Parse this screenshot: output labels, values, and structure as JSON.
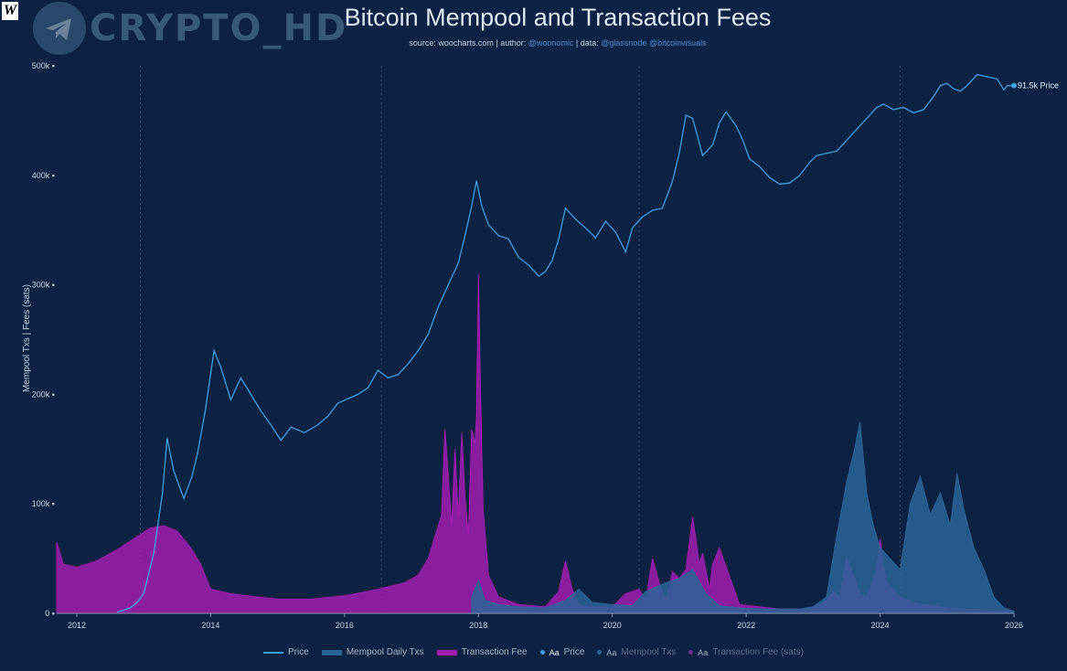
{
  "watermark": {
    "logo_letter": "W",
    "brand": "CRYPTO_HD"
  },
  "header": {
    "title": "Bitcoin Mempool and Transaction Fees",
    "source_prefix": "source: ",
    "source": "woocharts.com",
    "author_prefix": " | author: ",
    "author": "@woonomic",
    "data_prefix": " | data: ",
    "data_sources": "@glassnode @bitcoinvisuals"
  },
  "legend": {
    "price": "Price",
    "mempool": "Mempool Daily Txs",
    "fee": "Transaction Fee",
    "toggle_price": "Price",
    "toggle_mempool": "Mempool Txs",
    "toggle_fee": "Transaction Fee (sats)",
    "aa": "Aa"
  },
  "colors": {
    "background": "#0c2244",
    "price": "#3fa0e0",
    "mempool": "#2a6496",
    "fee": "#a21caf",
    "grid": "#39506e"
  },
  "chart_data": {
    "type": "area",
    "title": "Bitcoin Mempool and Transaction Fees",
    "ylabel": "Mempool Txs  |  Fees (sats)",
    "ylim": [
      0,
      500000
    ],
    "xlim": [
      2011.7,
      2026.0
    ],
    "yticks": [
      "0",
      "100k",
      "200k",
      "300k",
      "400k",
      "500k"
    ],
    "xticks": [
      "2012",
      "2014",
      "2016",
      "2018",
      "2020",
      "2022",
      "2024",
      "2026"
    ],
    "legend_position": "bottom",
    "end_label": "91.5k Price",
    "series": [
      {
        "name": "Price",
        "type": "line",
        "x": [
          2012.6,
          2012.8,
          2012.9,
          2013.0,
          2013.15,
          2013.28,
          2013.35,
          2013.45,
          2013.6,
          2013.72,
          2013.8,
          2013.92,
          2014.05,
          2014.15,
          2014.3,
          2014.45,
          2014.6,
          2014.75,
          2014.9,
          2015.05,
          2015.2,
          2015.4,
          2015.6,
          2015.75,
          2015.9,
          2016.05,
          2016.2,
          2016.35,
          2016.5,
          2016.65,
          2016.8,
          2016.95,
          2017.1,
          2017.25,
          2017.4,
          2017.55,
          2017.7,
          2017.8,
          2017.9,
          2017.97,
          2018.05,
          2018.15,
          2018.3,
          2018.45,
          2018.6,
          2018.75,
          2018.9,
          2019.0,
          2019.1,
          2019.2,
          2019.3,
          2019.45,
          2019.6,
          2019.75,
          2019.9,
          2020.05,
          2020.2,
          2020.3,
          2020.45,
          2020.6,
          2020.75,
          2020.9,
          2021.0,
          2021.1,
          2021.2,
          2021.35,
          2021.5,
          2021.6,
          2021.7,
          2021.85,
          2021.95,
          2022.05,
          2022.2,
          2022.35,
          2022.5,
          2022.65,
          2022.8,
          2022.95,
          2023.05,
          2023.2,
          2023.35,
          2023.5,
          2023.65,
          2023.8,
          2023.95,
          2024.05,
          2024.2,
          2024.35,
          2024.5,
          2024.65,
          2024.8,
          2024.9,
          2025.0,
          2025.1,
          2025.2,
          2025.3,
          2025.45,
          2025.6,
          2025.75,
          2025.85,
          2025.9,
          2026.0
        ],
        "y": [
          1000,
          5000,
          10000,
          18000,
          55000,
          110000,
          160000,
          130000,
          105000,
          125000,
          145000,
          185000,
          240000,
          225000,
          195000,
          215000,
          200000,
          185000,
          172000,
          158000,
          170000,
          165000,
          172000,
          180000,
          192000,
          196000,
          200000,
          206000,
          222000,
          215000,
          218000,
          228000,
          240000,
          255000,
          280000,
          300000,
          320000,
          345000,
          372000,
          395000,
          372000,
          355000,
          345000,
          342000,
          325000,
          318000,
          308000,
          312000,
          322000,
          342000,
          370000,
          360000,
          352000,
          343000,
          358000,
          348000,
          330000,
          352000,
          362000,
          368000,
          370000,
          395000,
          420000,
          455000,
          452000,
          418000,
          428000,
          448000,
          458000,
          445000,
          432000,
          415000,
          408000,
          398000,
          392000,
          393000,
          400000,
          412000,
          418000,
          420000,
          422000,
          432000,
          442000,
          452000,
          462000,
          465000,
          460000,
          462000,
          457000,
          460000,
          472000,
          482000,
          484000,
          479000,
          477000,
          482000,
          492000,
          490000,
          488000,
          478000,
          482000,
          482000
        ]
      },
      {
        "name": "Mempool Daily Txs",
        "type": "area",
        "x": [
          2017.9,
          2018.0,
          2018.1,
          2018.3,
          2018.6,
          2019.0,
          2019.3,
          2019.5,
          2019.7,
          2020.0,
          2020.3,
          2020.5,
          2020.8,
          2021.0,
          2021.2,
          2021.4,
          2021.6,
          2021.9,
          2022.3,
          2022.8,
          2023.0,
          2023.2,
          2023.35,
          2023.5,
          2023.62,
          2023.7,
          2023.8,
          2023.9,
          2024.0,
          2024.15,
          2024.3,
          2024.45,
          2024.6,
          2024.75,
          2024.9,
          2025.05,
          2025.15,
          2025.25,
          2025.4,
          2025.55,
          2025.7,
          2025.85,
          2026.0
        ],
        "y": [
          15000,
          30000,
          12000,
          8000,
          6000,
          5000,
          12000,
          22000,
          10000,
          8000,
          7000,
          20000,
          28000,
          32000,
          40000,
          18000,
          7000,
          5000,
          4000,
          4000,
          6000,
          15000,
          70000,
          120000,
          150000,
          175000,
          110000,
          80000,
          60000,
          50000,
          40000,
          100000,
          125000,
          90000,
          110000,
          80000,
          128000,
          95000,
          60000,
          40000,
          15000,
          5000,
          2000
        ]
      },
      {
        "name": "Transaction Fee",
        "type": "area",
        "x": [
          2011.7,
          2011.8,
          2012.0,
          2012.3,
          2012.6,
          2012.9,
          2013.1,
          2013.3,
          2013.5,
          2013.7,
          2013.85,
          2014.0,
          2014.3,
          2014.7,
          2015.0,
          2015.5,
          2016.0,
          2016.5,
          2016.9,
          2017.1,
          2017.25,
          2017.35,
          2017.45,
          2017.5,
          2017.55,
          2017.6,
          2017.65,
          2017.7,
          2017.75,
          2017.8,
          2017.85,
          2017.9,
          2017.95,
          2017.97,
          2018.0,
          2018.03,
          2018.07,
          2018.15,
          2018.3,
          2018.6,
          2019.0,
          2019.2,
          2019.3,
          2019.4,
          2019.5,
          2019.7,
          2020.0,
          2020.2,
          2020.4,
          2020.5,
          2020.6,
          2020.7,
          2020.8,
          2020.9,
          2021.0,
          2021.1,
          2021.2,
          2021.3,
          2021.35,
          2021.45,
          2021.5,
          2021.6,
          2021.9,
          2022.5,
          2022.9,
          2023.1,
          2023.2,
          2023.3,
          2023.4,
          2023.5,
          2023.7,
          2023.8,
          2023.9,
          2023.95,
          2024.0,
          2024.05,
          2024.1,
          2024.3,
          2024.5,
          2024.7,
          2025.0,
          2025.5,
          2026.0
        ],
        "y": [
          65000,
          45000,
          42000,
          48000,
          58000,
          70000,
          78000,
          80000,
          75000,
          60000,
          45000,
          22000,
          18000,
          15000,
          13000,
          13000,
          16000,
          22000,
          28000,
          35000,
          50000,
          70000,
          90000,
          168000,
          125000,
          80000,
          150000,
          88000,
          165000,
          105000,
          72000,
          168000,
          155000,
          180000,
          310000,
          205000,
          95000,
          35000,
          15000,
          8000,
          6000,
          20000,
          48000,
          22000,
          8000,
          6000,
          6000,
          18000,
          22000,
          12000,
          50000,
          28000,
          12000,
          38000,
          32000,
          40000,
          88000,
          45000,
          55000,
          22000,
          45000,
          60000,
          8000,
          4000,
          4000,
          8000,
          12000,
          20000,
          15000,
          52000,
          18000,
          15000,
          30000,
          42000,
          68000,
          45000,
          28000,
          15000,
          10000,
          8000,
          5000,
          3000,
          2000
        ]
      }
    ]
  }
}
